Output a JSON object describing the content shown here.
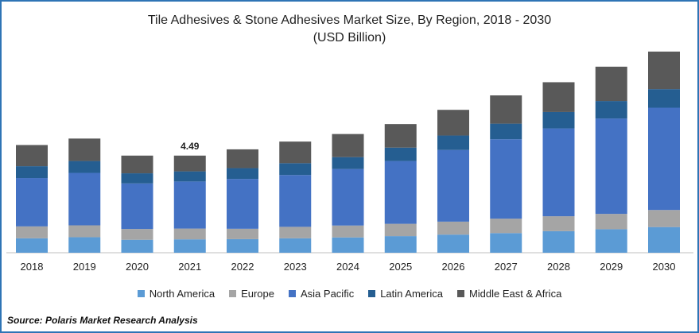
{
  "chart_data": {
    "type": "bar",
    "stacked": true,
    "title": "Tile Adhesives & Stone Adhesives Market Size, By Region, 2018 - 2030",
    "subtitle": "(USD Billion)",
    "categories": [
      "2018",
      "2019",
      "2020",
      "2021",
      "2022",
      "2023",
      "2024",
      "2025",
      "2026",
      "2027",
      "2028",
      "2029",
      "2030"
    ],
    "series": [
      {
        "name": "North America",
        "color": "#5b9bd5",
        "values": [
          0.67,
          0.72,
          0.6,
          0.62,
          0.63,
          0.67,
          0.71,
          0.77,
          0.84,
          0.91,
          1.0,
          1.09,
          1.19
        ]
      },
      {
        "name": "Europe",
        "color": "#a5a5a5",
        "values": [
          0.55,
          0.55,
          0.5,
          0.5,
          0.48,
          0.53,
          0.55,
          0.57,
          0.6,
          0.67,
          0.69,
          0.71,
          0.79
        ]
      },
      {
        "name": "Asia Pacific",
        "color": "#4472c4",
        "values": [
          2.24,
          2.43,
          2.11,
          2.18,
          2.31,
          2.4,
          2.62,
          2.91,
          3.32,
          3.68,
          4.07,
          4.42,
          4.74
        ]
      },
      {
        "name": "Latin America",
        "color": "#255e91",
        "values": [
          0.55,
          0.55,
          0.47,
          0.47,
          0.5,
          0.55,
          0.55,
          0.62,
          0.67,
          0.72,
          0.76,
          0.81,
          0.86
        ]
      },
      {
        "name": "Middle East & Africa",
        "color": "#595959",
        "values": [
          0.98,
          1.04,
          0.82,
          0.73,
          0.87,
          1.0,
          1.07,
          1.09,
          1.19,
          1.31,
          1.38,
          1.59,
          1.74
        ]
      }
    ],
    "annotations": [
      {
        "category": "2021",
        "label": "4.49"
      }
    ],
    "ylim": [
      0,
      9.5
    ],
    "grid": false,
    "legend": "bottom",
    "xlabel": "",
    "ylabel": ""
  },
  "footer": {
    "source": "Source: Polaris  Market Research Analysis"
  }
}
